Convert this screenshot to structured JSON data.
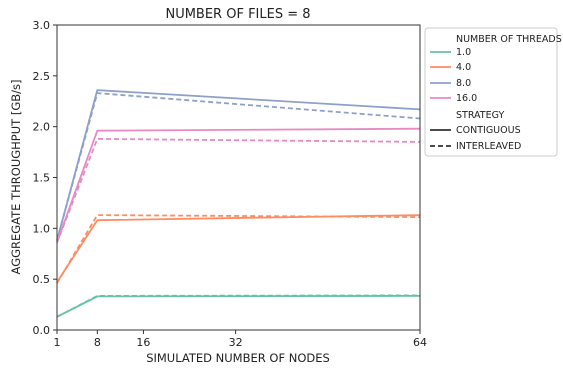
{
  "chart_data": {
    "type": "line",
    "title": "NUMBER OF FILES = 8",
    "xlabel": "SIMULATED NUMBER OF NODES",
    "ylabel": "AGGREGATE THROUGHPUT [GB/s]",
    "xlim": [
      1,
      64
    ],
    "ylim": [
      0,
      3.0
    ],
    "x_ticks": [
      1,
      8,
      16,
      32,
      64
    ],
    "y_ticks": [
      0.0,
      0.5,
      1.0,
      1.5,
      2.0,
      2.5,
      3.0
    ],
    "y_tick_labels": [
      "0.0",
      "0.5",
      "1.0",
      "1.5",
      "2.0",
      "2.5",
      "3.0"
    ],
    "x": [
      1,
      8,
      64
    ],
    "grid": false,
    "legend": {
      "placement": "outside-right",
      "hue_title": "NUMBER OF THREADS",
      "style_title": "STRATEGY",
      "hue_entries": [
        {
          "label": "1.0",
          "color": "#66c2a5"
        },
        {
          "label": "4.0",
          "color": "#fc8d62"
        },
        {
          "label": "8.0",
          "color": "#8da0cb"
        },
        {
          "label": "16.0",
          "color": "#e78ac3"
        }
      ],
      "style_entries": [
        {
          "label": "CONTIGUOUS",
          "dash": "solid"
        },
        {
          "label": "INTERLEAVED",
          "dash": "dashed"
        }
      ]
    },
    "series": [
      {
        "threads": "1.0",
        "strategy": "CONTIGUOUS",
        "color": "#66c2a5",
        "dash": "solid",
        "values": [
          0.13,
          0.33,
          0.335
        ]
      },
      {
        "threads": "1.0",
        "strategy": "INTERLEAVED",
        "color": "#66c2a5",
        "dash": "dashed",
        "values": [
          0.13,
          0.335,
          0.34
        ]
      },
      {
        "threads": "4.0",
        "strategy": "CONTIGUOUS",
        "color": "#fc8d62",
        "dash": "solid",
        "values": [
          0.47,
          1.08,
          1.13
        ]
      },
      {
        "threads": "4.0",
        "strategy": "INTERLEAVED",
        "color": "#fc8d62",
        "dash": "dashed",
        "values": [
          0.46,
          1.13,
          1.11
        ]
      },
      {
        "threads": "8.0",
        "strategy": "CONTIGUOUS",
        "color": "#8da0cb",
        "dash": "solid",
        "values": [
          0.88,
          2.36,
          2.17
        ]
      },
      {
        "threads": "8.0",
        "strategy": "INTERLEAVED",
        "color": "#8da0cb",
        "dash": "dashed",
        "values": [
          0.88,
          2.33,
          2.08
        ]
      },
      {
        "threads": "16.0",
        "strategy": "CONTIGUOUS",
        "color": "#e78ac3",
        "dash": "solid",
        "values": [
          0.86,
          1.96,
          1.98
        ]
      },
      {
        "threads": "16.0",
        "strategy": "INTERLEAVED",
        "color": "#e78ac3",
        "dash": "dashed",
        "values": [
          0.86,
          1.88,
          1.85
        ]
      }
    ]
  }
}
